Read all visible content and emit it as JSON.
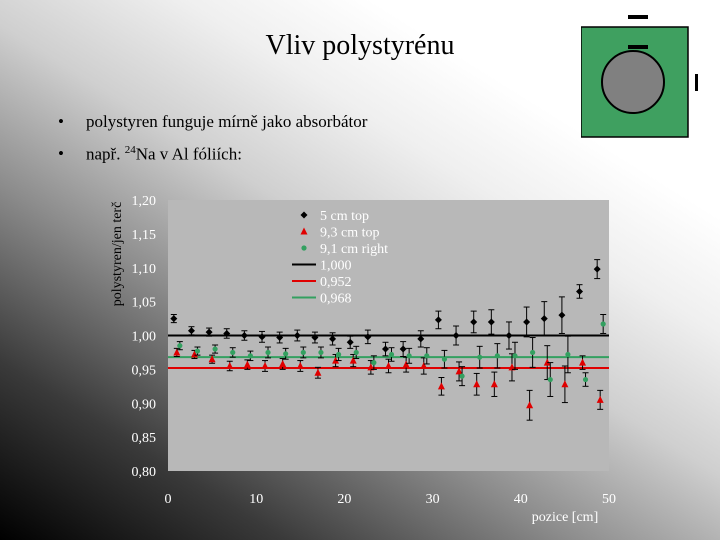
{
  "slide": {
    "title": "Vliv polystyrénu",
    "bullets": [
      {
        "text": "polystyren funguje mírně jako absorbátor"
      },
      {
        "text_before": "např. ",
        "sup": "24",
        "text_after": "Na v Al fóliích:"
      }
    ]
  },
  "colors": {
    "plot_background": "#b8b8b8",
    "series_5cm_top": "#000000",
    "series_93cm_top": "#e00000",
    "series_91cm_right": "#33a060",
    "line_1000": "#000000",
    "line_0952": "#e00000",
    "line_0968": "#33a060",
    "tick_label": "#ffffff"
  },
  "icons": {
    "logo": "detector-schematic-icon"
  },
  "chart_data": {
    "type": "scatter",
    "xlabel": "pozice [cm]",
    "ylabel": "polystyren/jen terč",
    "xlim": [
      0,
      50
    ],
    "ylim": [
      0.8,
      1.2
    ],
    "xticks": [
      "0",
      "10",
      "20",
      "30",
      "40",
      "50"
    ],
    "yticks": [
      "0.80",
      "0.85",
      "0.90",
      "0.95",
      "1.00",
      "1.05",
      "1.10",
      "1.15",
      "1.20"
    ],
    "legend_position": "top-left",
    "series": [
      {
        "name": "5 cm top",
        "marker": "diamond",
        "x": [
          1,
          3,
          5,
          7,
          9,
          11,
          13,
          15,
          17,
          19,
          21,
          23,
          25,
          27,
          29,
          31,
          33,
          35,
          37,
          39,
          41,
          43,
          45,
          47,
          49
        ],
        "y": [
          1.025,
          1.007,
          1.005,
          1.003,
          1.0,
          0.998,
          0.997,
          1.0,
          0.997,
          0.995,
          0.99,
          0.998,
          0.98,
          0.98,
          0.995,
          1.023,
          1.0,
          1.02,
          1.02,
          1.0,
          1.02,
          1.025,
          1.03,
          1.065,
          1.098
        ],
        "err": [
          0.006,
          0.006,
          0.006,
          0.007,
          0.007,
          0.008,
          0.008,
          0.008,
          0.008,
          0.009,
          0.009,
          0.01,
          0.01,
          0.011,
          0.012,
          0.013,
          0.014,
          0.016,
          0.018,
          0.02,
          0.022,
          0.025,
          0.027,
          0.01,
          0.014
        ]
      },
      {
        "name": "9,3 cm top",
        "marker": "triangle",
        "x": [
          1,
          3,
          5,
          7,
          9,
          11,
          13,
          15,
          17,
          19,
          21,
          23,
          25,
          27,
          29,
          31,
          33,
          35,
          37,
          39,
          41,
          43,
          45,
          47,
          49
        ],
        "y": [
          0.975,
          0.972,
          0.965,
          0.955,
          0.957,
          0.955,
          0.958,
          0.955,
          0.945,
          0.963,
          0.963,
          0.953,
          0.955,
          0.957,
          0.955,
          0.925,
          0.947,
          0.928,
          0.928,
          0.953,
          0.897,
          0.96,
          0.928,
          0.96,
          0.905
        ],
        "err": [
          0.006,
          0.006,
          0.006,
          0.007,
          0.007,
          0.008,
          0.008,
          0.008,
          0.008,
          0.009,
          0.009,
          0.01,
          0.01,
          0.011,
          0.012,
          0.013,
          0.014,
          0.016,
          0.018,
          0.02,
          0.022,
          0.025,
          0.027,
          0.01,
          0.014
        ]
      },
      {
        "name": "9,1 cm right",
        "marker": "circle",
        "x": [
          1,
          3,
          5,
          7,
          9,
          11,
          13,
          15,
          17,
          19,
          21,
          23,
          25,
          27,
          29,
          31,
          33,
          35,
          37,
          39,
          41,
          43,
          45,
          47,
          49
        ],
        "y": [
          0.985,
          0.977,
          0.98,
          0.975,
          0.97,
          0.975,
          0.973,
          0.975,
          0.975,
          0.972,
          0.975,
          0.96,
          0.972,
          0.97,
          0.97,
          0.965,
          0.94,
          0.968,
          0.97,
          0.97,
          0.975,
          0.935,
          0.972,
          0.935,
          1.017
        ],
        "err": [
          0.006,
          0.006,
          0.006,
          0.007,
          0.007,
          0.008,
          0.008,
          0.008,
          0.008,
          0.009,
          0.009,
          0.01,
          0.01,
          0.011,
          0.012,
          0.013,
          0.014,
          0.016,
          0.018,
          0.02,
          0.022,
          0.025,
          0.027,
          0.01,
          0.014
        ]
      },
      {
        "name": "1,000",
        "type": "hline",
        "y": 1.0
      },
      {
        "name": "0,952",
        "type": "hline",
        "y": 0.952
      },
      {
        "name": "0,968",
        "type": "hline",
        "y": 0.968
      }
    ]
  }
}
